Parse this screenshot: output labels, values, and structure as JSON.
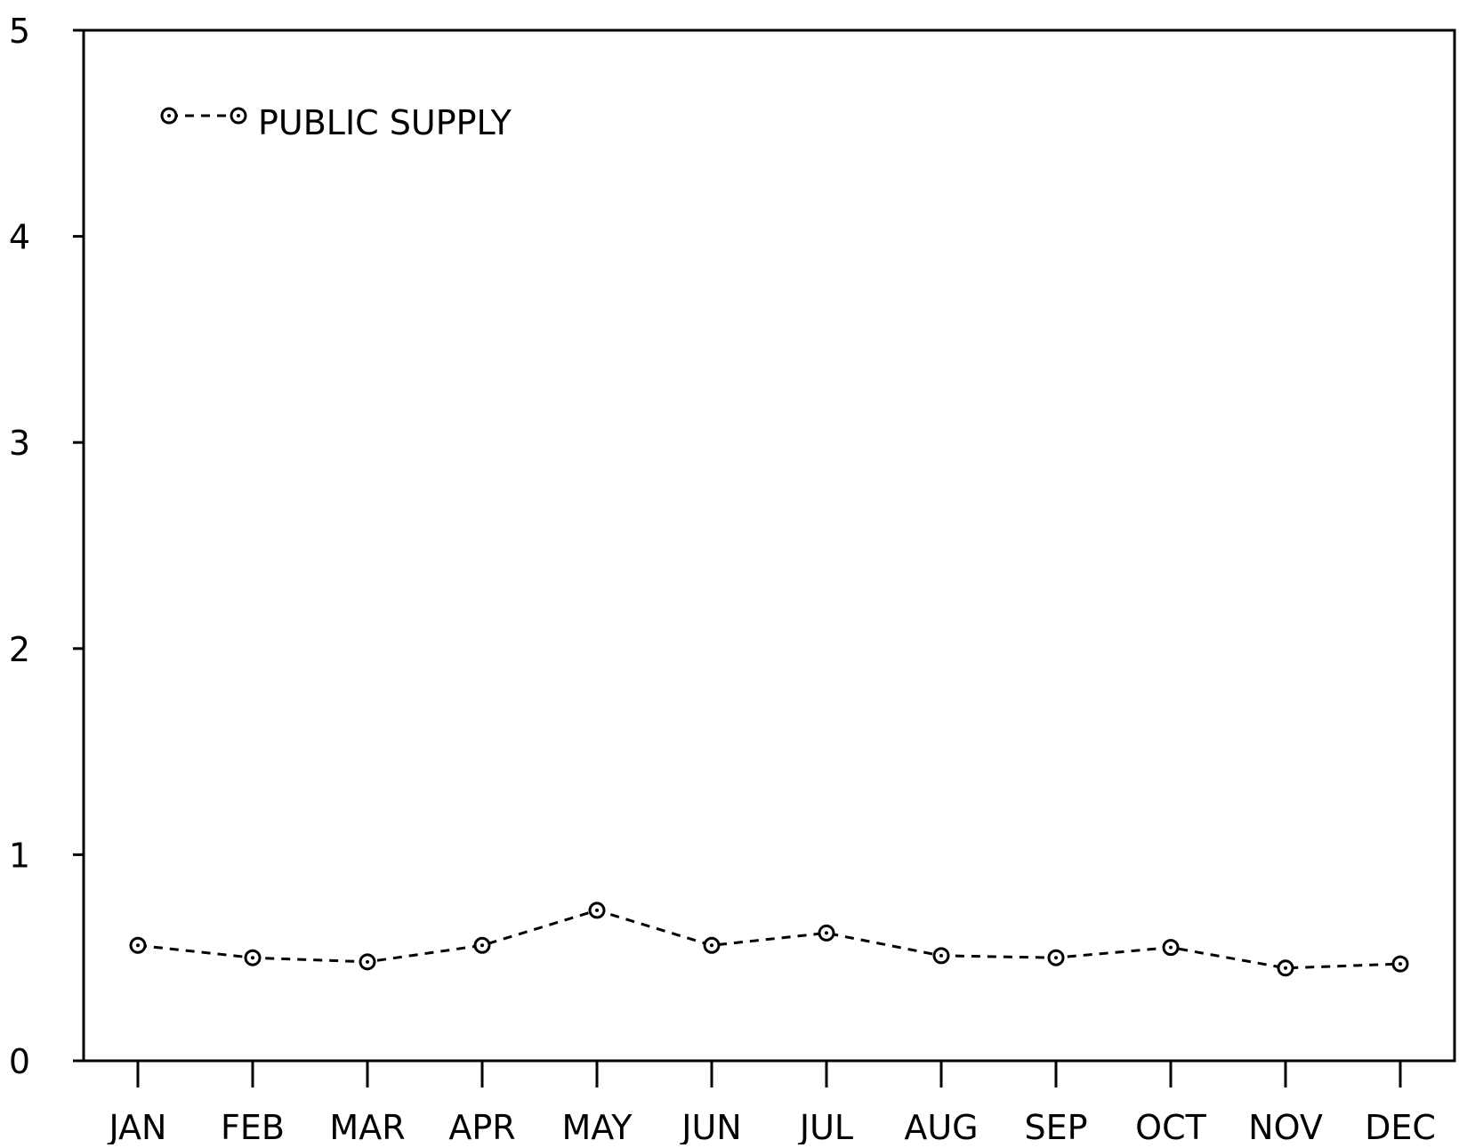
{
  "chart_data": {
    "type": "line",
    "title": "",
    "xlabel": "",
    "ylabel": "",
    "categories": [
      "JAN",
      "FEB",
      "MAR",
      "APR",
      "MAY",
      "JUN",
      "JUL",
      "AUG",
      "SEP",
      "OCT",
      "NOV",
      "DEC"
    ],
    "ylim": [
      0,
      5
    ],
    "yticks": [
      0,
      1,
      2,
      3,
      4,
      5
    ],
    "ytick_labels": [
      "0",
      "1",
      "2",
      "3",
      "4",
      "5"
    ],
    "grid": false,
    "legend_position": "top-left",
    "series": [
      {
        "name": "PUBLIC SUPPLY",
        "line_style": "dashed",
        "marker": "open-circle-dot",
        "color": "#000000",
        "values": [
          0.56,
          0.5,
          0.48,
          0.56,
          0.73,
          0.56,
          0.62,
          0.51,
          0.5,
          0.55,
          0.45,
          0.47
        ]
      }
    ]
  }
}
